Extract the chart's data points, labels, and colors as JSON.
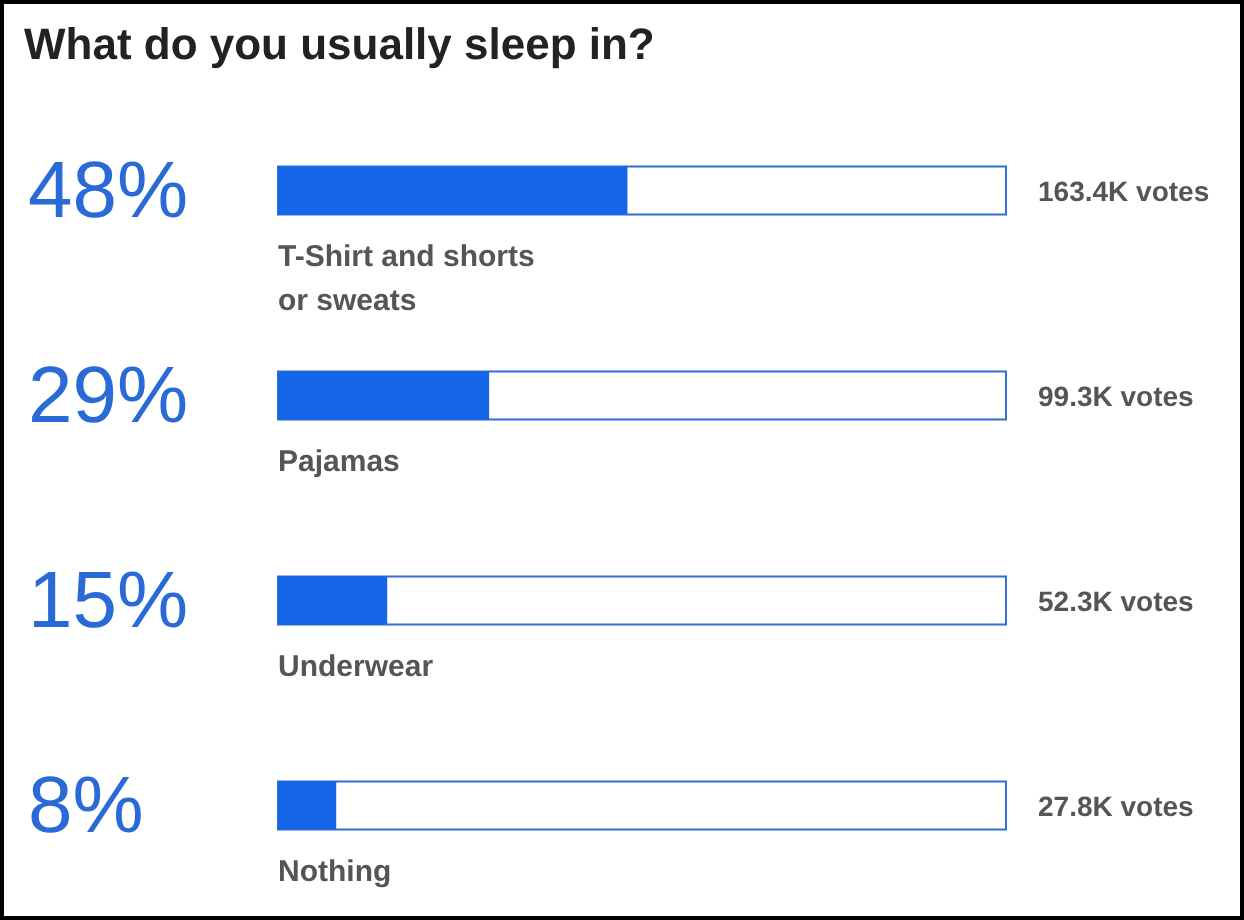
{
  "chart_data": {
    "type": "bar",
    "orientation": "horizontal",
    "title": "What do you usually sleep in?",
    "categories": [
      "T-Shirt and shorts or sweats",
      "Pajamas",
      "Underwear",
      "Nothing"
    ],
    "values": [
      48,
      29,
      15,
      8
    ],
    "color": "#1565e8",
    "xlim": [
      0,
      100
    ],
    "value_labels": [
      "48%",
      "29%",
      "15%",
      "8%"
    ],
    "annotations": [
      "163.4K votes",
      "99.3K votes",
      "52.3K votes",
      "27.8K votes"
    ],
    "tick_labels": "y"
  }
}
